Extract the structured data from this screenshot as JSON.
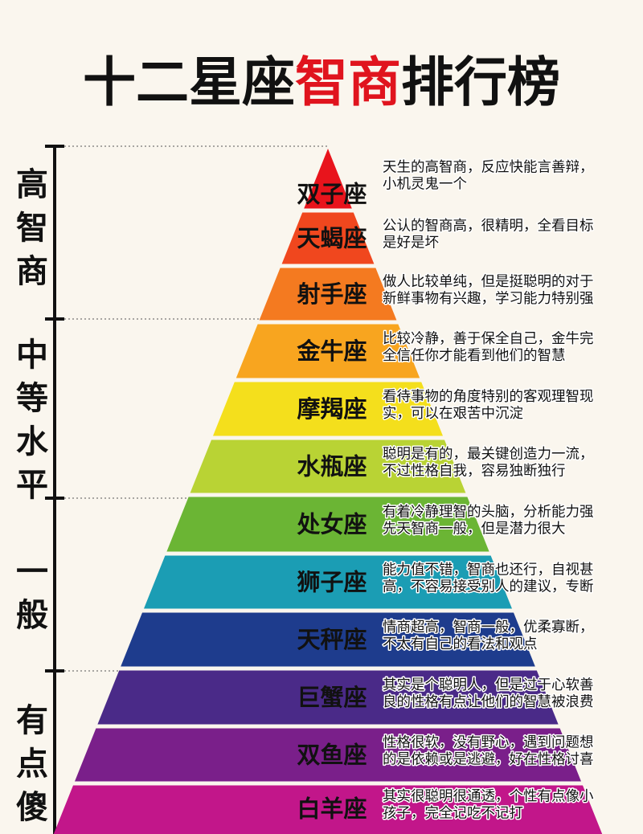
{
  "title": {
    "parts": [
      "十二星座",
      "智商",
      "排行榜"
    ]
  },
  "groups": [
    {
      "label": "高智商"
    },
    {
      "label": "中等水平"
    },
    {
      "label": "一般"
    },
    {
      "label": "有点傻"
    }
  ],
  "levels": [
    {
      "name": "双子座",
      "lines": [
        "天生的高智商，反应快能言善辩，",
        "小机灵鬼一个"
      ]
    },
    {
      "name": "天蝎座",
      "lines": [
        "公认的智商高，很精明，全看目标",
        "是好是坏"
      ]
    },
    {
      "name": "射手座",
      "lines": [
        "做人比较单纯，但是挺聪明的对于",
        "新鲜事物有兴趣，学习能力特别强"
      ]
    },
    {
      "name": "金牛座",
      "lines": [
        "比较冷静，善于保全自己，金牛完",
        "全信任你才能看到他们的智慧"
      ]
    },
    {
      "name": "摩羯座",
      "lines": [
        "看待事物的角度特别的客观理智现",
        "实，可以在艰苦中沉淀"
      ]
    },
    {
      "name": "水瓶座",
      "lines": [
        "聪明是有的，最关键创造力一流，",
        "不过性格自我，容易独断独行"
      ]
    },
    {
      "name": "处女座",
      "lines": [
        "有着冷静理智的头脑，分析能力强",
        "先天智商一般，但是潜力很大"
      ]
    },
    {
      "name": "狮子座",
      "lines": [
        "能力值不错，智商也还行，自视甚",
        "高，不容易接受别人的建议，专断"
      ]
    },
    {
      "name": "天秤座",
      "lines": [
        "情商超高，智商一般，优柔寡断，",
        "不太有自己的看法和观点"
      ]
    },
    {
      "name": "巨蟹座",
      "lines": [
        "其实是个聪明人，但是过于心软善",
        "良的性格有点让他们的智慧被浪费"
      ]
    },
    {
      "name": "双鱼座",
      "lines": [
        "性格很软，没有野心，遇到问题想",
        "的是依赖或是逃避，好在性格讨喜"
      ]
    },
    {
      "name": "白羊座",
      "lines": [
        "其实很聪明很通透，个性有点像小",
        "孩子，完全记吃不记打"
      ]
    }
  ]
}
